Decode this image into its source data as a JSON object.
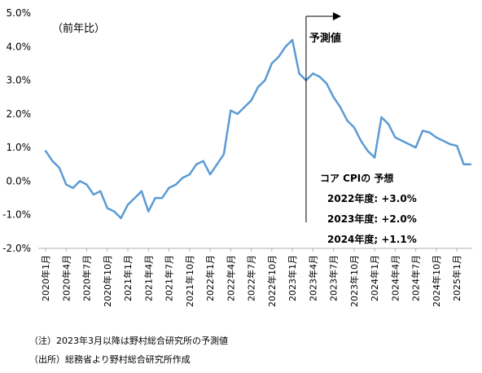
{
  "chart_data": {
    "type": "line",
    "unit_label": "（前年比）",
    "ylim": [
      -2.0,
      5.0
    ],
    "yticks": [
      -2.0,
      -1.0,
      0.0,
      1.0,
      2.0,
      3.0,
      4.0,
      5.0
    ],
    "ytick_labels": [
      "-2.0%",
      "-1.0%",
      "0.0%",
      "1.0%",
      "2.0%",
      "3.0%",
      "4.0%",
      "5.0%"
    ],
    "grid": false,
    "categories": [
      "2020年1月",
      "2020年2月",
      "2020年3月",
      "2020年4月",
      "2020年5月",
      "2020年6月",
      "2020年7月",
      "2020年8月",
      "2020年9月",
      "2020年10月",
      "2020年11月",
      "2020年12月",
      "2021年1月",
      "2021年2月",
      "2021年3月",
      "2021年4月",
      "2021年5月",
      "2021年6月",
      "2021年7月",
      "2021年8月",
      "2021年9月",
      "2021年10月",
      "2021年11月",
      "2021年12月",
      "2022年1月",
      "2022年2月",
      "2022年3月",
      "2022年4月",
      "2022年5月",
      "2022年6月",
      "2022年7月",
      "2022年8月",
      "2022年9月",
      "2022年10月",
      "2022年11月",
      "2022年12月",
      "2023年1月",
      "2023年2月",
      "2023年3月",
      "2023年4月",
      "2023年5月",
      "2023年6月",
      "2023年7月",
      "2023年8月",
      "2023年9月",
      "2023年10月",
      "2023年11月",
      "2023年12月",
      "2024年1月",
      "2024年2月",
      "2024年3月",
      "2024年4月",
      "2024年5月",
      "2024年6月",
      "2024年7月",
      "2024年8月",
      "2024年9月",
      "2024年10月",
      "2024年11月",
      "2024年12月",
      "2025年1月",
      "2025年2月",
      "2025年3月"
    ],
    "xtick_labels": [
      "2020年1月",
      "2020年4月",
      "2020年7月",
      "2020年10月",
      "2021年1月",
      "2021年4月",
      "2021年7月",
      "2021年10月",
      "2022年1月",
      "2022年4月",
      "2022年7月",
      "2022年10月",
      "2023年1月",
      "2023年4月",
      "2023年7月",
      "2023年10月",
      "2024年1月",
      "2024年4月",
      "2024年7月",
      "2024年10月",
      "2025年1月"
    ],
    "series": [
      {
        "color": "#5b9bd5",
        "values": [
          0.9,
          0.6,
          0.4,
          -0.1,
          -0.2,
          0.0,
          -0.1,
          -0.4,
          -0.3,
          -0.8,
          -0.9,
          -1.1,
          -0.7,
          -0.5,
          -0.3,
          -0.9,
          -0.5,
          -0.5,
          -0.2,
          -0.1,
          0.1,
          0.2,
          0.5,
          0.6,
          0.2,
          0.5,
          0.8,
          2.1,
          2.0,
          2.2,
          2.4,
          2.8,
          3.0,
          3.5,
          3.7,
          4.0,
          4.2,
          3.2,
          3.0,
          3.2,
          3.1,
          2.9,
          2.5,
          2.2,
          1.8,
          1.6,
          1.2,
          0.9,
          0.7,
          1.9,
          1.7,
          1.3,
          1.2,
          1.1,
          1.0,
          1.5,
          1.45,
          1.3,
          1.2,
          1.1,
          1.05,
          0.5,
          0.5
        ]
      }
    ],
    "forecast_start": "2023年3月",
    "forecast_label": "予測値",
    "annotation": {
      "title": "コア CPIの 予想",
      "lines": [
        "2022年度: +3.0%",
        "2023年度: +2.0%",
        "2024年度; +1.1%"
      ]
    }
  },
  "notes": {
    "note": "（注）2023年3月以降は野村総合研究所の予測値",
    "source": "（出所）総務省より野村総合研究所作成"
  }
}
